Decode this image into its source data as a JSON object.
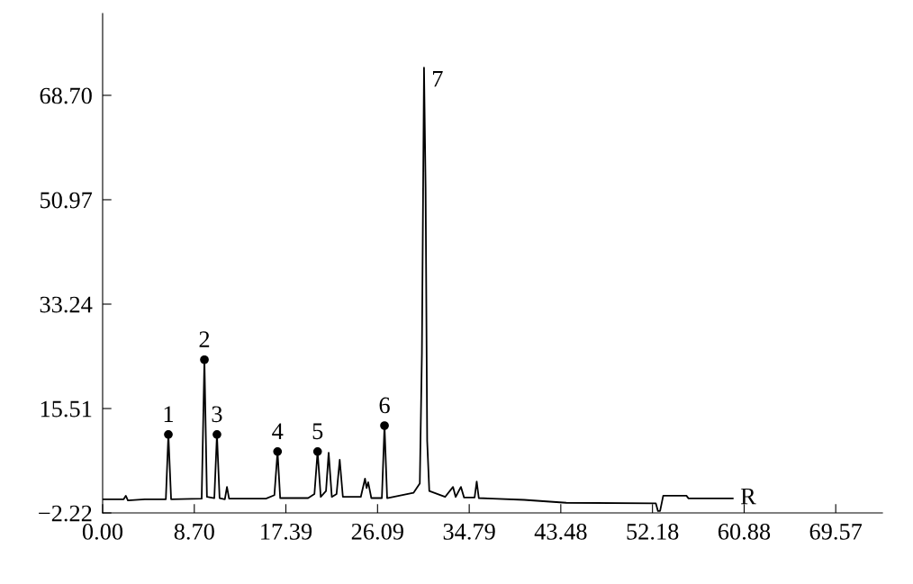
{
  "chart_data": {
    "type": "line",
    "color": "#000000",
    "x": [
      0,
      2.0,
      2.2,
      2.4,
      4,
      6.0,
      6.24,
      6.5,
      9.4,
      9.66,
      9.9,
      10.6,
      10.85,
      11.1,
      11.6,
      11.8,
      12.0,
      15.5,
      16.3,
      16.6,
      16.85,
      19.5,
      20.1,
      20.4,
      20.7,
      21.2,
      21.45,
      21.75,
      22.2,
      22.5,
      22.8,
      24.5,
      24.9,
      25.05,
      25.2,
      25.5,
      26.5,
      26.75,
      27.0,
      29.5,
      30.1,
      30.3,
      30.5,
      30.65,
      30.8,
      31.0,
      32.5,
      33.25,
      33.5,
      34.0,
      34.3,
      35.3,
      35.5,
      35.7,
      37,
      40,
      44,
      52.5,
      52.7,
      52.9,
      53.2,
      55.4,
      55.6,
      59.8
    ],
    "values": [
      0.1,
      0.1,
      0.7,
      -0.1,
      0.1,
      0.1,
      11.1,
      0.1,
      0.2,
      23.8,
      0.5,
      0.3,
      11.1,
      0.3,
      0.1,
      2.2,
      0.2,
      0.2,
      0.8,
      8.2,
      0.3,
      0.3,
      1.0,
      8.2,
      0.5,
      1.5,
      8.0,
      0.5,
      1.0,
      6.8,
      0.5,
      0.5,
      3.6,
      2.0,
      3.0,
      0.3,
      0.3,
      12.6,
      0.3,
      1.2,
      2.8,
      25,
      73.4,
      53,
      10,
      1.5,
      0.5,
      2.2,
      0.5,
      2.2,
      0.4,
      0.4,
      3.1,
      0.3,
      0.2,
      0.0,
      -0.5,
      -0.6,
      -1.9,
      -1.9,
      0.7,
      0.7,
      0.25,
      0.25
    ],
    "series": [
      {
        "type": "scatter",
        "color": "#000000",
        "marker": "circle",
        "x": [
          6.24,
          9.66,
          10.85,
          16.6,
          20.4,
          26.75
        ],
        "values": [
          11.1,
          23.8,
          11.1,
          8.2,
          8.2,
          12.6
        ]
      }
    ],
    "annotations": [
      {
        "text": "1",
        "x": 6.24,
        "y": 11.1
      },
      {
        "text": "2",
        "x": 9.66,
        "y": 23.8
      },
      {
        "text": "3",
        "x": 10.85,
        "y": 11.1
      },
      {
        "text": "4",
        "x": 16.6,
        "y": 8.2
      },
      {
        "text": "5",
        "x": 20.4,
        "y": 8.2
      },
      {
        "text": "6",
        "x": 26.75,
        "y": 12.6
      },
      {
        "text": "7",
        "x": 30.5,
        "y": 73.4
      },
      {
        "text": "R",
        "x": 59.8,
        "y": 0.25
      }
    ],
    "xlim": [
      0,
      74
    ],
    "ylim": [
      -2.22,
      82.6
    ],
    "xticks": [
      {
        "value": 0,
        "label": "0.00"
      },
      {
        "value": 8.7,
        "label": "8.70"
      },
      {
        "value": 17.39,
        "label": "17.39"
      },
      {
        "value": 26.09,
        "label": "26.09"
      },
      {
        "value": 34.79,
        "label": "34.79"
      },
      {
        "value": 43.48,
        "label": "43.48"
      },
      {
        "value": 52.18,
        "label": "52.18"
      },
      {
        "value": 60.88,
        "label": "60.88"
      },
      {
        "value": 69.57,
        "label": "69.57"
      }
    ],
    "yticks": [
      {
        "value": -2.22,
        "label": "−2.22"
      },
      {
        "value": 15.51,
        "label": "15.51"
      },
      {
        "value": 33.24,
        "label": "33.24"
      },
      {
        "value": 50.97,
        "label": "50.97"
      },
      {
        "value": 68.7,
        "label": "68.70"
      }
    ],
    "grid": false,
    "legend": false,
    "marker": "none",
    "line_style": "solid"
  }
}
